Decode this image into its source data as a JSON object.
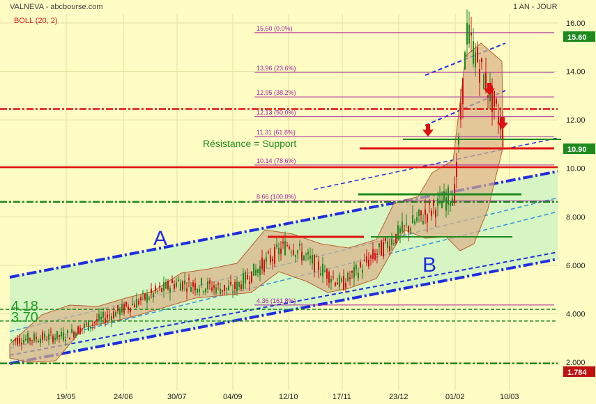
{
  "header": {
    "title": "VALNEVA - abcbourse.com",
    "indicator": "BOLL (20, 2)",
    "period": "1 AN - JOUR"
  },
  "tags": {
    "current": "10.90",
    "high": "15.60",
    "low": "1.784"
  },
  "annotations": {
    "channel_a": "A",
    "channel_b": "B",
    "resistance_support": "Résistance = Support",
    "level_418": "4.18",
    "level_370": "3.70"
  },
  "colors": {
    "background": "#fffcc4",
    "bollinger_fill": "#d8b088",
    "channel_fill": "#d6f5c2",
    "channel_line": "#1e2ee0",
    "green_line": "#1e8a1e",
    "red_line": "#e01010",
    "fib_line": "#a020a0",
    "candle_up": "#1e8a1e",
    "candle_down": "#d01010",
    "tag_green": "#1e8a1e",
    "tag_red": "#c01010"
  },
  "chart_data": {
    "type": "line",
    "title": "VALNEVA - abcbourse.com",
    "timeframe": "1 AN - JOUR",
    "indicator": "BOLL (20, 2)",
    "x_ticks": [
      "19/05",
      "24/06",
      "30/07",
      "04/09",
      "12/10",
      "17/11",
      "23/12",
      "01/02",
      "10/03"
    ],
    "y_ticks": [
      2.0,
      4.0,
      6.0,
      8.0,
      10.0,
      12.0,
      14.0,
      16.0
    ],
    "y_tick_labels": [
      "2.000",
      "4.000",
      "6.000",
      "8.000",
      "10.00",
      "12.00",
      "14.00",
      "16.00"
    ],
    "ylim": [
      1.5,
      16.5
    ],
    "last_price": 10.9,
    "fibonacci": [
      {
        "label": "15.60 (0.0%)",
        "value": 15.6
      },
      {
        "label": "13.96 (23.6%)",
        "value": 13.96
      },
      {
        "label": "12.95 (38.2%)",
        "value": 12.95
      },
      {
        "label": "12.13 (50.0%)",
        "value": 12.13
      },
      {
        "label": "11.31 (61.8%)",
        "value": 11.31
      },
      {
        "label": "10.14 (78.6%)",
        "value": 10.14
      },
      {
        "label": "8.66 (100.0%)",
        "value": 8.66
      },
      {
        "label": "4.36 (161.8%)",
        "value": 4.36
      }
    ],
    "horizontal_levels": [
      {
        "value": 12.45,
        "style": "dash-dot",
        "color": "#e01010"
      },
      {
        "value": 10.05,
        "style": "solid",
        "color": "#e01010"
      },
      {
        "value": 8.62,
        "style": "dash-dot",
        "color": "#1e8a1e"
      },
      {
        "value": 4.18,
        "style": "dashed",
        "color": "#1e8a1e"
      },
      {
        "value": 3.7,
        "style": "dashed",
        "color": "#1e8a1e"
      },
      {
        "value": 1.95,
        "style": "dash-dot",
        "color": "#1e8a1e"
      }
    ],
    "price_series": [
      {
        "date": "19/05",
        "close": 3.1
      },
      {
        "date": "24/06",
        "close": 4.2
      },
      {
        "date": "30/07",
        "close": 5.3
      },
      {
        "date": "04/09",
        "close": 5.0
      },
      {
        "date": "12/10",
        "close": 6.9
      },
      {
        "date": "17/11",
        "close": 5.2
      },
      {
        "date": "23/12",
        "close": 7.3
      },
      {
        "date": "01/02",
        "close": 9.0
      },
      {
        "date": "15/02",
        "close": 15.6
      },
      {
        "date": "10/03",
        "close": 10.9
      }
    ]
  }
}
